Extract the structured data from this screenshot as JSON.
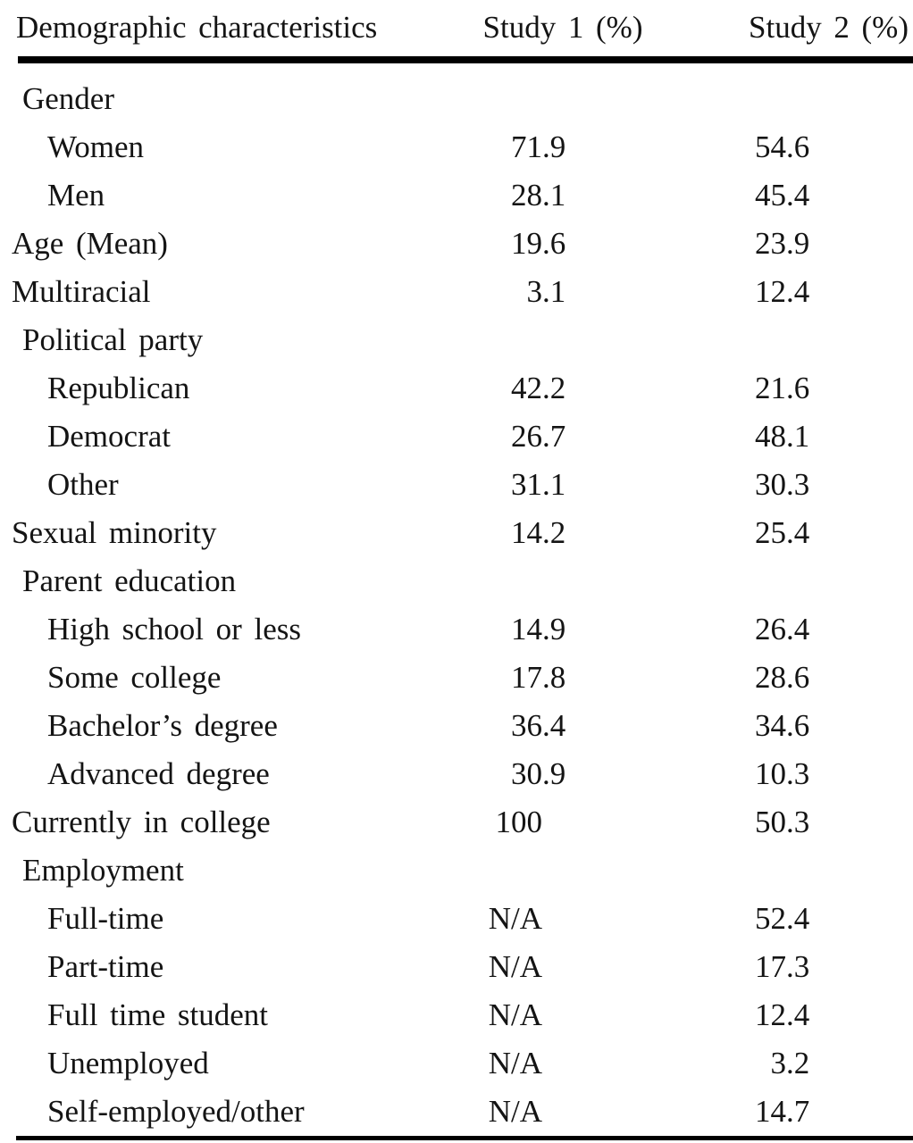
{
  "table": {
    "columns": [
      "Demographic characteristics",
      "Study 1 (%)",
      "Study 2 (%)"
    ],
    "rows": [
      {
        "label": "Gender",
        "indent": 1,
        "s1": "",
        "s2": ""
      },
      {
        "label": "Women",
        "indent": 2,
        "s1": "71.9",
        "s2": "54.6"
      },
      {
        "label": "Men",
        "indent": 2,
        "s1": "28.1",
        "s2": "45.4"
      },
      {
        "label": "Age (Mean)",
        "indent": 0,
        "s1": "19.6",
        "s2": "23.9"
      },
      {
        "label": "Multiracial",
        "indent": 0,
        "s1": "3.1",
        "s2": "12.4"
      },
      {
        "label": "Political party",
        "indent": 1,
        "s1": "",
        "s2": ""
      },
      {
        "label": "Republican",
        "indent": 2,
        "s1": "42.2",
        "s2": "21.6"
      },
      {
        "label": "Democrat",
        "indent": 2,
        "s1": "26.7",
        "s2": "48.1"
      },
      {
        "label": "Other",
        "indent": 2,
        "s1": "31.1",
        "s2": "30.3"
      },
      {
        "label": "Sexual minority",
        "indent": 0,
        "s1": "14.2",
        "s2": "25.4"
      },
      {
        "label": "Parent education",
        "indent": 1,
        "s1": "",
        "s2": ""
      },
      {
        "label": "High school or less",
        "indent": 2,
        "s1": "14.9",
        "s2": "26.4"
      },
      {
        "label": "Some college",
        "indent": 2,
        "s1": "17.8",
        "s2": "28.6"
      },
      {
        "label": "Bachelor’s degree",
        "indent": 2,
        "s1": "36.4",
        "s2": "34.6"
      },
      {
        "label": "Advanced degree",
        "indent": 2,
        "s1": "30.9",
        "s2": "10.3"
      },
      {
        "label": "Currently in college",
        "indent": 0,
        "s1": "100",
        "s2": "50.3"
      },
      {
        "label": "Employment",
        "indent": 1,
        "s1": "",
        "s2": ""
      },
      {
        "label": "Full-time",
        "indent": 2,
        "s1": "N/A",
        "s2": "52.4"
      },
      {
        "label": "Part-time",
        "indent": 2,
        "s1": "N/A",
        "s2": "17.3"
      },
      {
        "label": "Full time student",
        "indent": 2,
        "s1": "N/A",
        "s2": "12.4"
      },
      {
        "label": "Unemployed",
        "indent": 2,
        "s1": "N/A",
        "s2": "3.2"
      },
      {
        "label": "Self-employed/other",
        "indent": 2,
        "s1": "N/A",
        "s2": "14.7"
      }
    ]
  },
  "colors": {
    "ink": "#141414",
    "rule": "#000000",
    "background": "#ffffff"
  }
}
